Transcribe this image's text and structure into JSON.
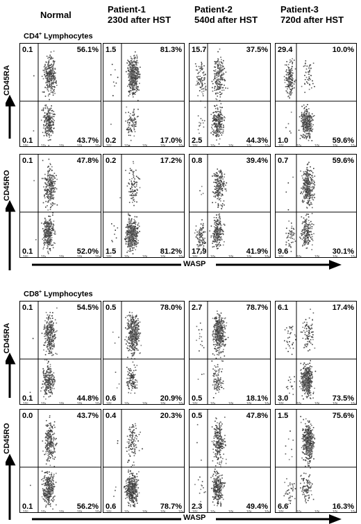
{
  "headers": [
    "Normal",
    "Patient-1\n230d after HST",
    "Patient-2\n540d after HST",
    "Patient-3\n720d after HST"
  ],
  "sections": [
    {
      "title": "CD4",
      "title_sup": "+",
      "title_rest": " Lymphocytes"
    },
    {
      "title": "CD8",
      "title_sup": "+",
      "title_rest": " Lymphocytes"
    }
  ],
  "y_labels": [
    "CD45RA",
    "CD45RO",
    "CD45RA",
    "CD45RO"
  ],
  "x_label": "WASP",
  "chart_data": {
    "type": "scatter",
    "description_axes": {
      "x": "WASP",
      "y": [
        "CD45RA",
        "CD45RO"
      ]
    },
    "panels": [
      {
        "section": "CD4",
        "marker": "CD45RA",
        "column": "Normal",
        "quadrants": {
          "ul": "0.1",
          "ur": "56.1%",
          "ll": "0.1",
          "lr": "43.7%"
        }
      },
      {
        "section": "CD4",
        "marker": "CD45RA",
        "column": "Patient-1",
        "quadrants": {
          "ul": "1.5",
          "ur": "81.3%",
          "ll": "0.2",
          "lr": "17.0%"
        }
      },
      {
        "section": "CD4",
        "marker": "CD45RA",
        "column": "Patient-2",
        "quadrants": {
          "ul": "15.7",
          "ur": "37.5%",
          "ll": "2.5",
          "lr": "44.3%"
        }
      },
      {
        "section": "CD4",
        "marker": "CD45RA",
        "column": "Patient-3",
        "quadrants": {
          "ul": "29.4",
          "ur": "10.0%",
          "ll": "1.0",
          "lr": "59.6%"
        }
      },
      {
        "section": "CD4",
        "marker": "CD45RO",
        "column": "Normal",
        "quadrants": {
          "ul": "0.1",
          "ur": "47.8%",
          "ll": "0.1",
          "lr": "52.0%"
        }
      },
      {
        "section": "CD4",
        "marker": "CD45RO",
        "column": "Patient-1",
        "quadrants": {
          "ul": "0.2",
          "ur": "17.2%",
          "ll": "1.5",
          "lr": "81.2%"
        }
      },
      {
        "section": "CD4",
        "marker": "CD45RO",
        "column": "Patient-2",
        "quadrants": {
          "ul": "0.8",
          "ur": "39.4%",
          "ll": "17.9",
          "lr": "41.9%"
        }
      },
      {
        "section": "CD4",
        "marker": "CD45RO",
        "column": "Patient-3",
        "quadrants": {
          "ul": "0.7",
          "ur": "59.6%",
          "ll": "9.6",
          "lr": "30.1%"
        }
      },
      {
        "section": "CD8",
        "marker": "CD45RA",
        "column": "Normal",
        "quadrants": {
          "ul": "0.1",
          "ur": "54.5%",
          "ll": "0.1",
          "lr": "44.8%"
        }
      },
      {
        "section": "CD8",
        "marker": "CD45RA",
        "column": "Patient-1",
        "quadrants": {
          "ul": "0.5",
          "ur": "78.0%",
          "ll": "0.6",
          "lr": "20.9%"
        }
      },
      {
        "section": "CD8",
        "marker": "CD45RA",
        "column": "Patient-2",
        "quadrants": {
          "ul": "2.7",
          "ur": "78.7%",
          "ll": "0.5",
          "lr": "18.1%"
        }
      },
      {
        "section": "CD8",
        "marker": "CD45RA",
        "column": "Patient-3",
        "quadrants": {
          "ul": "6.1",
          "ur": "17.4%",
          "ll": "3.0",
          "lr": "73.5%"
        }
      },
      {
        "section": "CD8",
        "marker": "CD45RO",
        "column": "Normal",
        "quadrants": {
          "ul": "0.0",
          "ur": "43.7%",
          "ll": "0.1",
          "lr": "56.2%"
        }
      },
      {
        "section": "CD8",
        "marker": "CD45RO",
        "column": "Patient-1",
        "quadrants": {
          "ul": "0.4",
          "ur": "20.3%",
          "ll": "0.6",
          "lr": "78.7%"
        }
      },
      {
        "section": "CD8",
        "marker": "CD45RO",
        "column": "Patient-2",
        "quadrants": {
          "ul": "0.5",
          "ur": "47.8%",
          "ll": "2.3",
          "lr": "49.4%"
        }
      },
      {
        "section": "CD8",
        "marker": "CD45RO",
        "column": "Patient-3",
        "quadrants": {
          "ul": "1.5",
          "ur": "75.6%",
          "ll": "6.6",
          "lr": "16.3%"
        }
      }
    ],
    "tick_labels": [
      "10⁰",
      "10¹",
      "10²",
      "10³",
      "10⁴"
    ]
  }
}
